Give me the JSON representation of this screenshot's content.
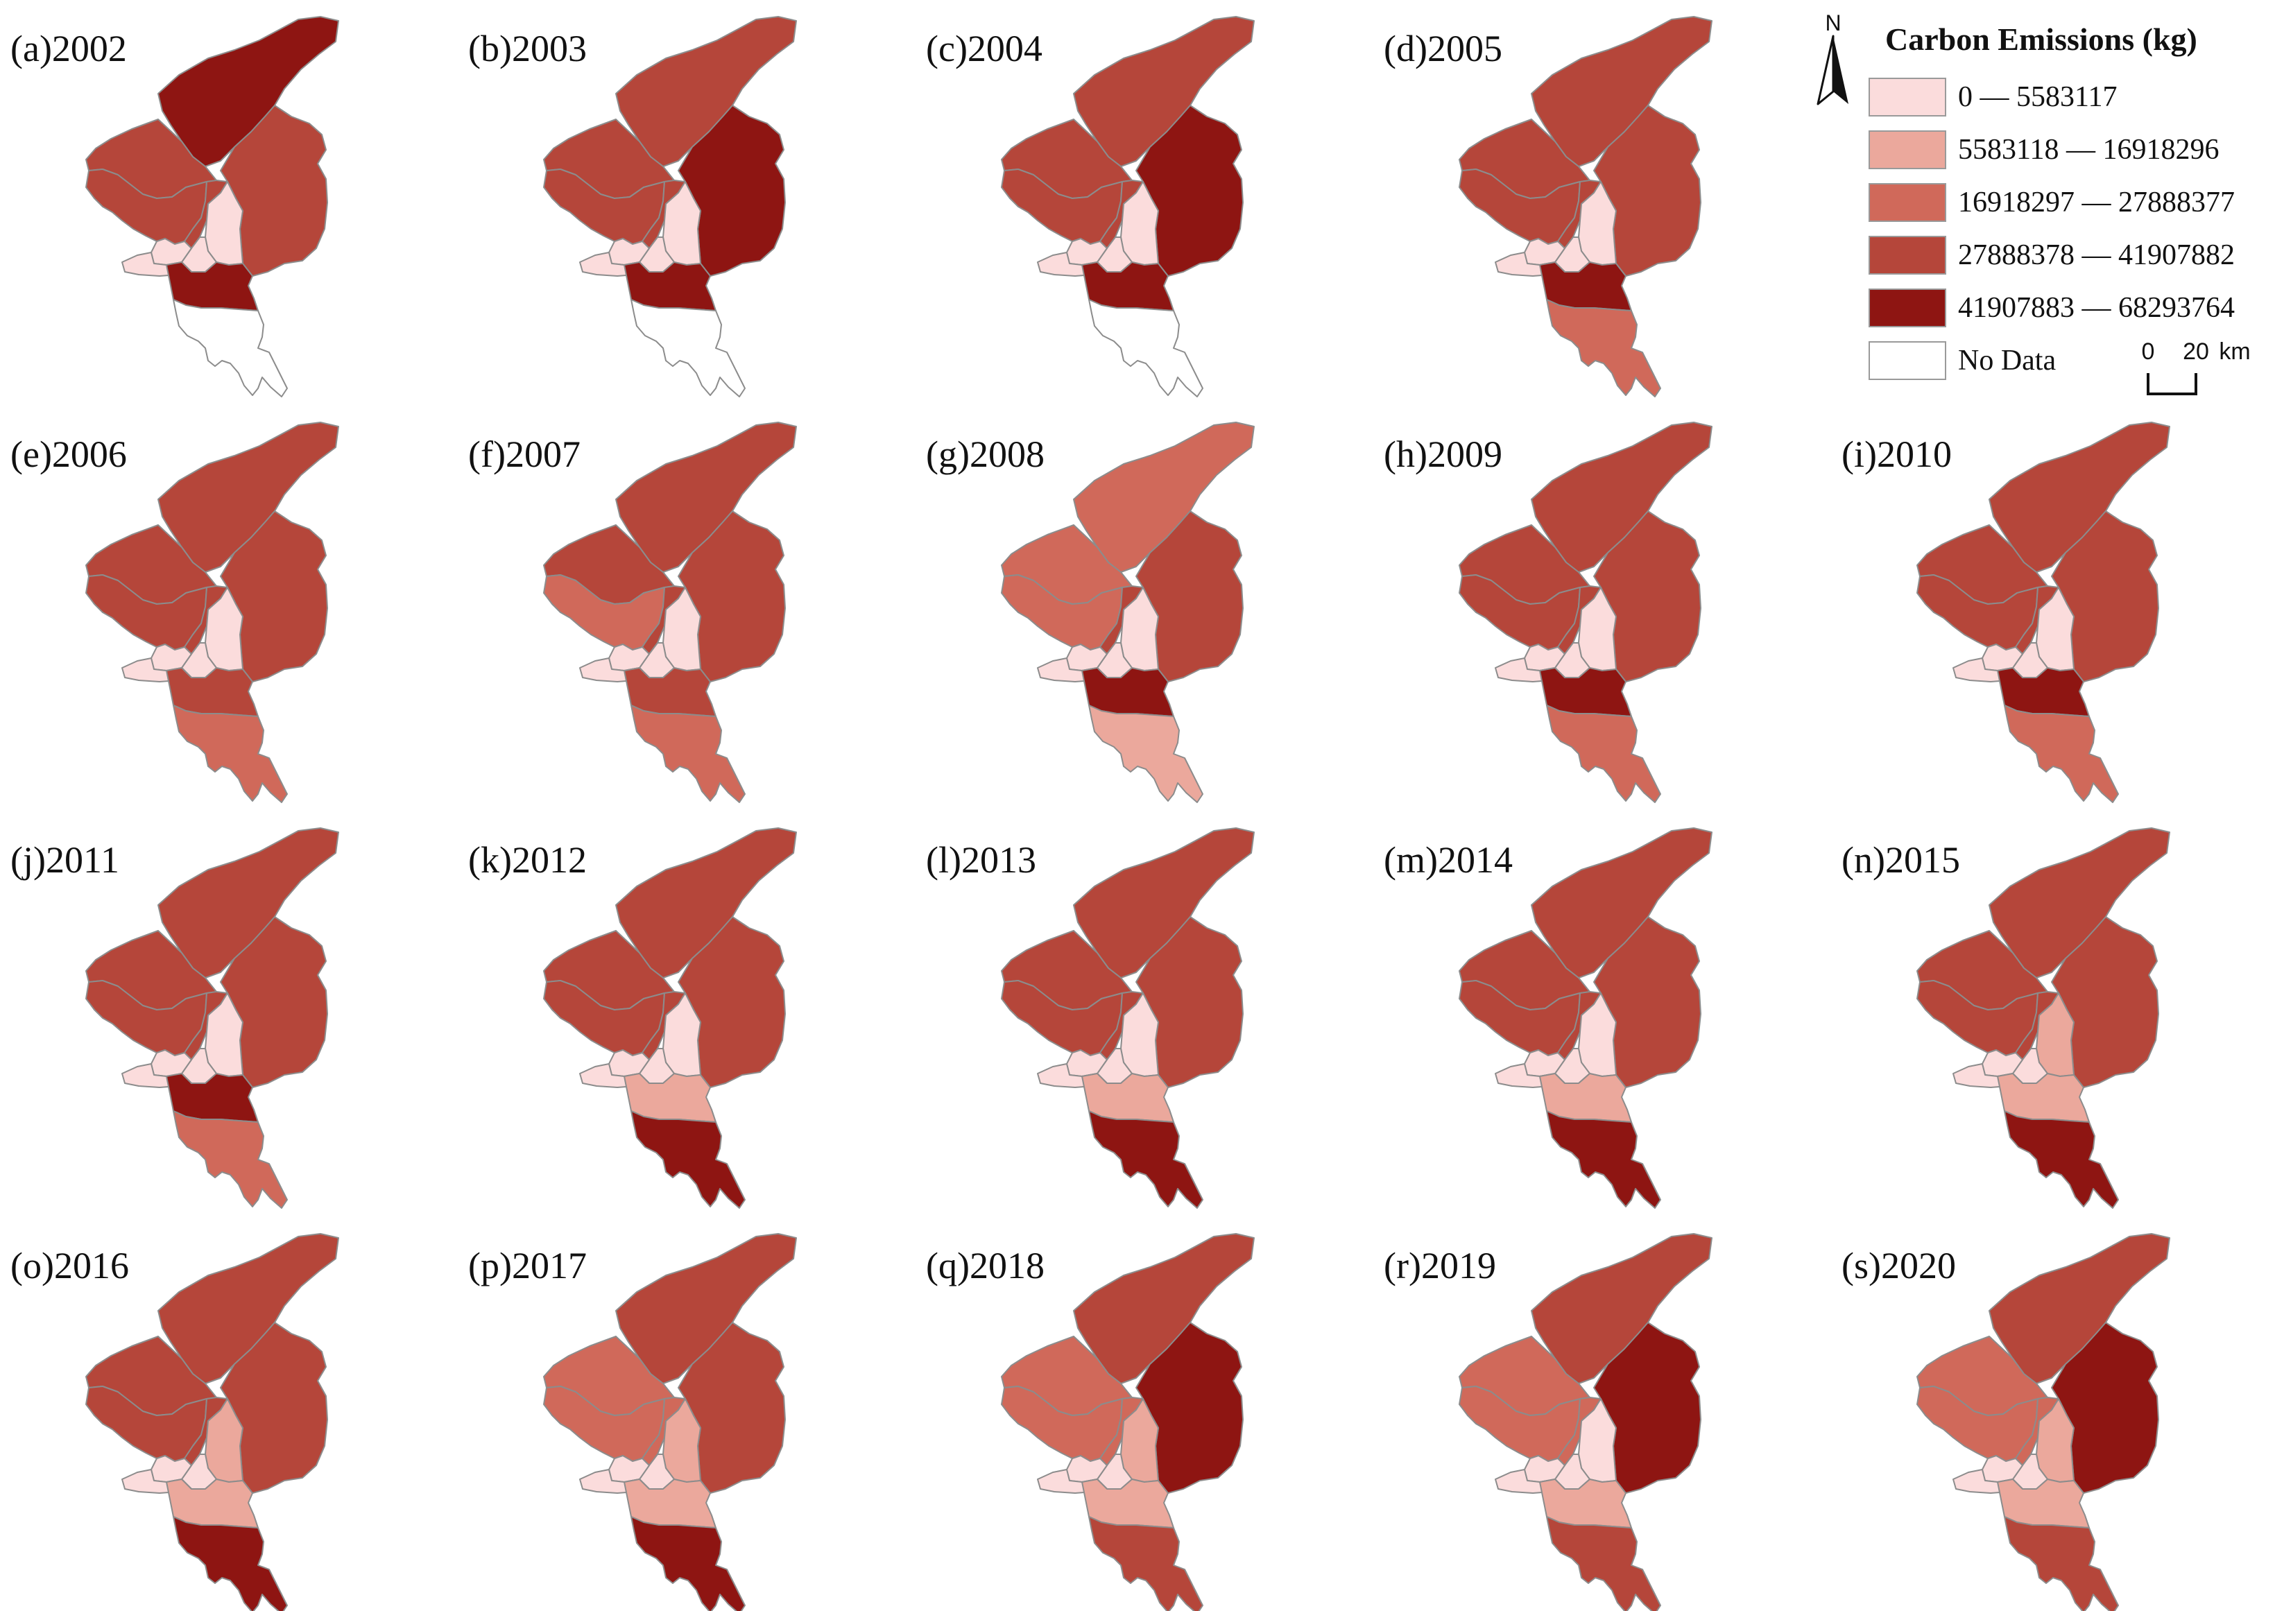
{
  "legend": {
    "title": "Carbon Emissions (kg)",
    "classes": [
      {
        "label": "0 — 5583117",
        "color": "#fbdcdc"
      },
      {
        "label": "5583118 — 16918296",
        "color": "#eba89c"
      },
      {
        "label": "16918297 — 27888377",
        "color": "#d0695a"
      },
      {
        "label": "27888378 — 41907882",
        "color": "#b5463a"
      },
      {
        "label": "41907883 — 68293764",
        "color": "#8e1512"
      },
      {
        "label": "No Data",
        "color": "#ffffff"
      }
    ],
    "north_label": "N",
    "scale": {
      "start": "0",
      "end": "20",
      "unit": "km"
    }
  },
  "regions": [
    "north",
    "northwest",
    "east",
    "west",
    "center",
    "core",
    "core_east",
    "bw1",
    "bw2",
    "mid_south",
    "south"
  ],
  "panels": [
    {
      "label": "(a)2002",
      "classes": {
        "north": 4,
        "northwest": 3,
        "east": 3,
        "west": 3,
        "center": 3,
        "core": 0,
        "core_east": 0,
        "bw1": 0,
        "bw2": 0,
        "mid_south": 4,
        "south": 5
      }
    },
    {
      "label": "(b)2003",
      "classes": {
        "north": 3,
        "northwest": 3,
        "east": 4,
        "west": 3,
        "center": 3,
        "core": 0,
        "core_east": 0,
        "bw1": 0,
        "bw2": 0,
        "mid_south": 4,
        "south": 5
      }
    },
    {
      "label": "(c)2004",
      "classes": {
        "north": 3,
        "northwest": 3,
        "east": 4,
        "west": 3,
        "center": 3,
        "core": 0,
        "core_east": 0,
        "bw1": 0,
        "bw2": 0,
        "mid_south": 4,
        "south": 5
      }
    },
    {
      "label": "(d)2005",
      "classes": {
        "north": 3,
        "northwest": 3,
        "east": 3,
        "west": 3,
        "center": 3,
        "core": 0,
        "core_east": 0,
        "bw1": 0,
        "bw2": 0,
        "mid_south": 4,
        "south": 2
      }
    },
    {
      "label": "(e)2006",
      "classes": {
        "north": 3,
        "northwest": 3,
        "east": 3,
        "west": 3,
        "center": 3,
        "core": 0,
        "core_east": 0,
        "bw1": 0,
        "bw2": 0,
        "mid_south": 3,
        "south": 2
      }
    },
    {
      "label": "(f)2007",
      "classes": {
        "north": 3,
        "northwest": 3,
        "east": 3,
        "west": 2,
        "center": 3,
        "core": 0,
        "core_east": 0,
        "bw1": 0,
        "bw2": 0,
        "mid_south": 3,
        "south": 2
      }
    },
    {
      "label": "(g)2008",
      "classes": {
        "north": 2,
        "northwest": 2,
        "east": 3,
        "west": 2,
        "center": 3,
        "core": 0,
        "core_east": 0,
        "bw1": 0,
        "bw2": 0,
        "mid_south": 4,
        "south": 1
      }
    },
    {
      "label": "(h)2009",
      "classes": {
        "north": 3,
        "northwest": 3,
        "east": 3,
        "west": 3,
        "center": 3,
        "core": 0,
        "core_east": 0,
        "bw1": 0,
        "bw2": 0,
        "mid_south": 4,
        "south": 2
      }
    },
    {
      "label": "(i)2010",
      "classes": {
        "north": 3,
        "northwest": 3,
        "east": 3,
        "west": 3,
        "center": 3,
        "core": 0,
        "core_east": 0,
        "bw1": 0,
        "bw2": 0,
        "mid_south": 4,
        "south": 2
      }
    },
    {
      "label": "(j)2011",
      "classes": {
        "north": 3,
        "northwest": 3,
        "east": 3,
        "west": 3,
        "center": 3,
        "core": 0,
        "core_east": 0,
        "bw1": 0,
        "bw2": 0,
        "mid_south": 4,
        "south": 2
      }
    },
    {
      "label": "(k)2012",
      "classes": {
        "north": 3,
        "northwest": 3,
        "east": 3,
        "west": 3,
        "center": 3,
        "core": 0,
        "core_east": 0,
        "bw1": 0,
        "bw2": 0,
        "mid_south": 1,
        "south": 4
      }
    },
    {
      "label": "(l)2013",
      "classes": {
        "north": 3,
        "northwest": 3,
        "east": 3,
        "west": 3,
        "center": 3,
        "core": 0,
        "core_east": 0,
        "bw1": 0,
        "bw2": 0,
        "mid_south": 1,
        "south": 4
      }
    },
    {
      "label": "(m)2014",
      "classes": {
        "north": 3,
        "northwest": 3,
        "east": 3,
        "west": 3,
        "center": 3,
        "core": 0,
        "core_east": 0,
        "bw1": 0,
        "bw2": 0,
        "mid_south": 1,
        "south": 4
      }
    },
    {
      "label": "(n)2015",
      "classes": {
        "north": 3,
        "northwest": 3,
        "east": 3,
        "west": 3,
        "center": 3,
        "core": 1,
        "core_east": 0,
        "bw1": 0,
        "bw2": 0,
        "mid_south": 1,
        "south": 4
      }
    },
    {
      "label": "(o)2016",
      "classes": {
        "north": 3,
        "northwest": 3,
        "east": 3,
        "west": 3,
        "center": 3,
        "core": 1,
        "core_east": 0,
        "bw1": 0,
        "bw2": 0,
        "mid_south": 1,
        "south": 4
      }
    },
    {
      "label": "(p)2017",
      "classes": {
        "north": 3,
        "northwest": 2,
        "east": 3,
        "west": 2,
        "center": 2,
        "core": 1,
        "core_east": 0,
        "bw1": 0,
        "bw2": 0,
        "mid_south": 1,
        "south": 4
      }
    },
    {
      "label": "(q)2018",
      "classes": {
        "north": 3,
        "northwest": 2,
        "east": 4,
        "west": 2,
        "center": 2,
        "core": 1,
        "core_east": 0,
        "bw1": 0,
        "bw2": 0,
        "mid_south": 1,
        "south": 3
      }
    },
    {
      "label": "(r)2019",
      "classes": {
        "north": 3,
        "northwest": 2,
        "east": 4,
        "west": 2,
        "center": 2,
        "core": 0,
        "core_east": 0,
        "bw1": 0,
        "bw2": 0,
        "mid_south": 1,
        "south": 3
      }
    },
    {
      "label": "(s)2020",
      "classes": {
        "north": 3,
        "northwest": 2,
        "east": 4,
        "west": 2,
        "center": 2,
        "core": 1,
        "core_east": 0,
        "bw1": 0,
        "bw2": 0,
        "mid_south": 1,
        "south": 3
      }
    }
  ]
}
